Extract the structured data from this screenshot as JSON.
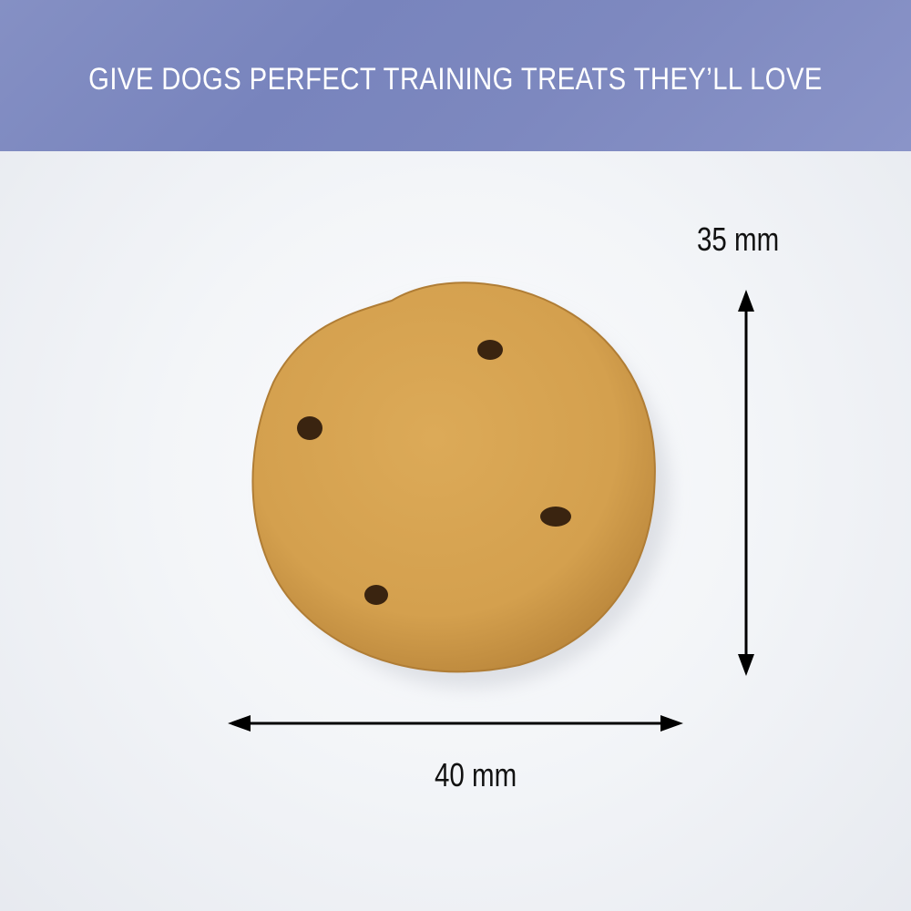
{
  "banner": {
    "title": "GIVE DOGS PERFECT TRAINING TREATS THEY’LL LOVE",
    "color": "#7d88bf"
  },
  "dimensions": {
    "height_label": "35 mm",
    "width_label": "40 mm"
  },
  "product": {
    "name": "biscuit-treat",
    "color": "#d8a451"
  }
}
